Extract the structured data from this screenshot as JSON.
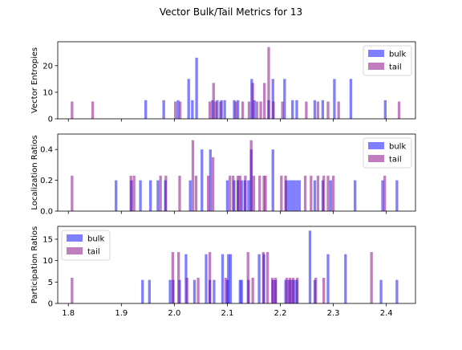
{
  "chart_data": [
    {
      "type": "bar",
      "title": "Vector Bulk/Tail Metrics for 13",
      "ylabel": "Vector Entropies",
      "xlabel": "",
      "xlim": [
        1.78,
        2.455
      ],
      "ylim": [
        0,
        29
      ],
      "yticks": [
        0,
        10,
        20
      ],
      "show_xticklabels": false,
      "legend_position": "upper right",
      "bar_width": 0.005,
      "series": [
        {
          "name": "bulk",
          "color": "#0000ff",
          "x": [
            1.946,
            1.98,
            2.007,
            2.027,
            2.034,
            2.042,
            2.072,
            2.081,
            2.089,
            2.095,
            2.113,
            2.12,
            2.146,
            2.151,
            2.178,
            2.186,
            2.208,
            2.223,
            2.231,
            2.265,
            2.28,
            2.302,
            2.333,
            2.398
          ],
          "values": [
            7,
            7,
            7,
            15,
            7,
            23,
            7,
            7,
            7,
            7,
            7,
            7,
            15,
            7,
            7,
            15,
            15,
            7,
            7,
            7,
            7,
            15,
            15,
            7
          ]
        },
        {
          "name": "tail",
          "color": "#800080",
          "x": [
            1.807,
            1.846,
            2.002,
            2.011,
            2.067,
            2.074,
            2.078,
            2.087,
            2.116,
            2.129,
            2.141,
            2.148,
            2.156,
            2.163,
            2.17,
            2.178,
            2.187,
            2.204,
            2.249,
            2.271,
            2.29,
            2.31,
            2.424
          ],
          "values": [
            6.5,
            6.5,
            6.5,
            6.5,
            6.5,
            13.5,
            6.5,
            6.5,
            6.5,
            6.5,
            6.5,
            13.5,
            6.5,
            6.5,
            13.5,
            27,
            6.5,
            6.5,
            6.5,
            6.5,
            6.5,
            6.5,
            6.5
          ]
        }
      ]
    },
    {
      "type": "bar",
      "ylabel": "Localization Ratios",
      "xlabel": "",
      "xlim": [
        1.78,
        2.455
      ],
      "ylim": [
        0,
        0.5
      ],
      "yticks": [
        0.0,
        0.2,
        0.4
      ],
      "show_xticklabels": false,
      "legend_position": "upper right",
      "bar_width": 0.005,
      "series": [
        {
          "name": "bulk",
          "color": "#0000ff",
          "x": [
            1.89,
            1.919,
            1.936,
            1.955,
            1.969,
            1.983,
            2.03,
            2.052,
            2.068,
            2.1,
            2.113,
            2.12,
            2.127,
            2.133,
            2.14,
            2.145,
            2.186,
            2.211,
            2.216,
            2.221,
            2.226,
            2.231,
            2.236,
            2.265,
            2.28,
            2.295,
            2.341,
            2.393,
            2.42
          ],
          "values": [
            0.2,
            0.2,
            0.2,
            0.2,
            0.2,
            0.2,
            0.2,
            0.4,
            0.4,
            0.2,
            0.2,
            0.2,
            0.2,
            0.2,
            0.2,
            0.4,
            0.4,
            0.2,
            0.2,
            0.2,
            0.2,
            0.2,
            0.2,
            0.2,
            0.2,
            0.2,
            0.2,
            0.2,
            0.2
          ]
        },
        {
          "name": "tail",
          "color": "#800080",
          "x": [
            1.807,
            1.918,
            1.924,
            1.974,
            1.984,
            2.01,
            2.035,
            2.041,
            2.064,
            2.073,
            2.105,
            2.111,
            2.12,
            2.124,
            2.134,
            2.145,
            2.15,
            2.161,
            2.169,
            2.172,
            2.202,
            2.21,
            2.247,
            2.258,
            2.271,
            2.282,
            2.29,
            2.3,
            2.397
          ],
          "values": [
            0.23,
            0.23,
            0.23,
            0.23,
            0.23,
            0.23,
            0.46,
            0.23,
            0.23,
            0.35,
            0.23,
            0.23,
            0.23,
            0.23,
            0.23,
            0.46,
            0.23,
            0.23,
            0.23,
            0.23,
            0.23,
            0.23,
            0.23,
            0.23,
            0.23,
            0.23,
            0.23,
            0.23,
            0.23
          ]
        }
      ]
    },
    {
      "type": "bar",
      "ylabel": "Participation Ratios",
      "xlabel": "",
      "xlim": [
        1.78,
        2.455
      ],
      "ylim": [
        0,
        18
      ],
      "yticks": [
        0,
        5,
        10,
        15
      ],
      "xticks": [
        1.8,
        1.9,
        2.0,
        2.1,
        2.2,
        2.3,
        2.4
      ],
      "show_xticklabels": true,
      "legend_position": "upper left",
      "bar_width": 0.005,
      "series": [
        {
          "name": "bulk",
          "color": "#0000ff",
          "x": [
            1.94,
            1.953,
            1.992,
            1.998,
            2.01,
            2.022,
            2.038,
            2.06,
            2.067,
            2.075,
            2.091,
            2.1,
            2.102,
            2.106,
            2.124,
            2.127,
            2.14,
            2.16,
            2.169,
            2.186,
            2.191,
            2.21,
            2.216,
            2.221,
            2.226,
            2.231,
            2.256,
            2.265,
            2.29,
            2.323,
            2.39,
            2.42
          ],
          "values": [
            5.5,
            5.5,
            5.5,
            5.5,
            5.5,
            11.5,
            5.5,
            11.5,
            5.5,
            5.5,
            11.5,
            5.5,
            11.5,
            11.5,
            5.5,
            5.5,
            5.5,
            11.5,
            11.5,
            5.5,
            5.5,
            5.5,
            5.5,
            5.5,
            5.5,
            5.5,
            17,
            5.5,
            11.5,
            11.5,
            5.5,
            5.5
          ]
        },
        {
          "name": "tail",
          "color": "#800080",
          "x": [
            1.807,
            1.997,
            2.008,
            2.024,
            2.045,
            2.067,
            2.097,
            2.139,
            2.148,
            2.168,
            2.176,
            2.185,
            2.191,
            2.212,
            2.218,
            2.224,
            2.232,
            2.267,
            2.282,
            2.372
          ],
          "values": [
            6,
            12,
            12,
            6,
            6,
            12,
            6,
            12,
            6,
            12,
            12,
            6,
            6,
            6,
            6,
            6,
            6,
            6,
            6,
            12
          ]
        }
      ]
    }
  ]
}
